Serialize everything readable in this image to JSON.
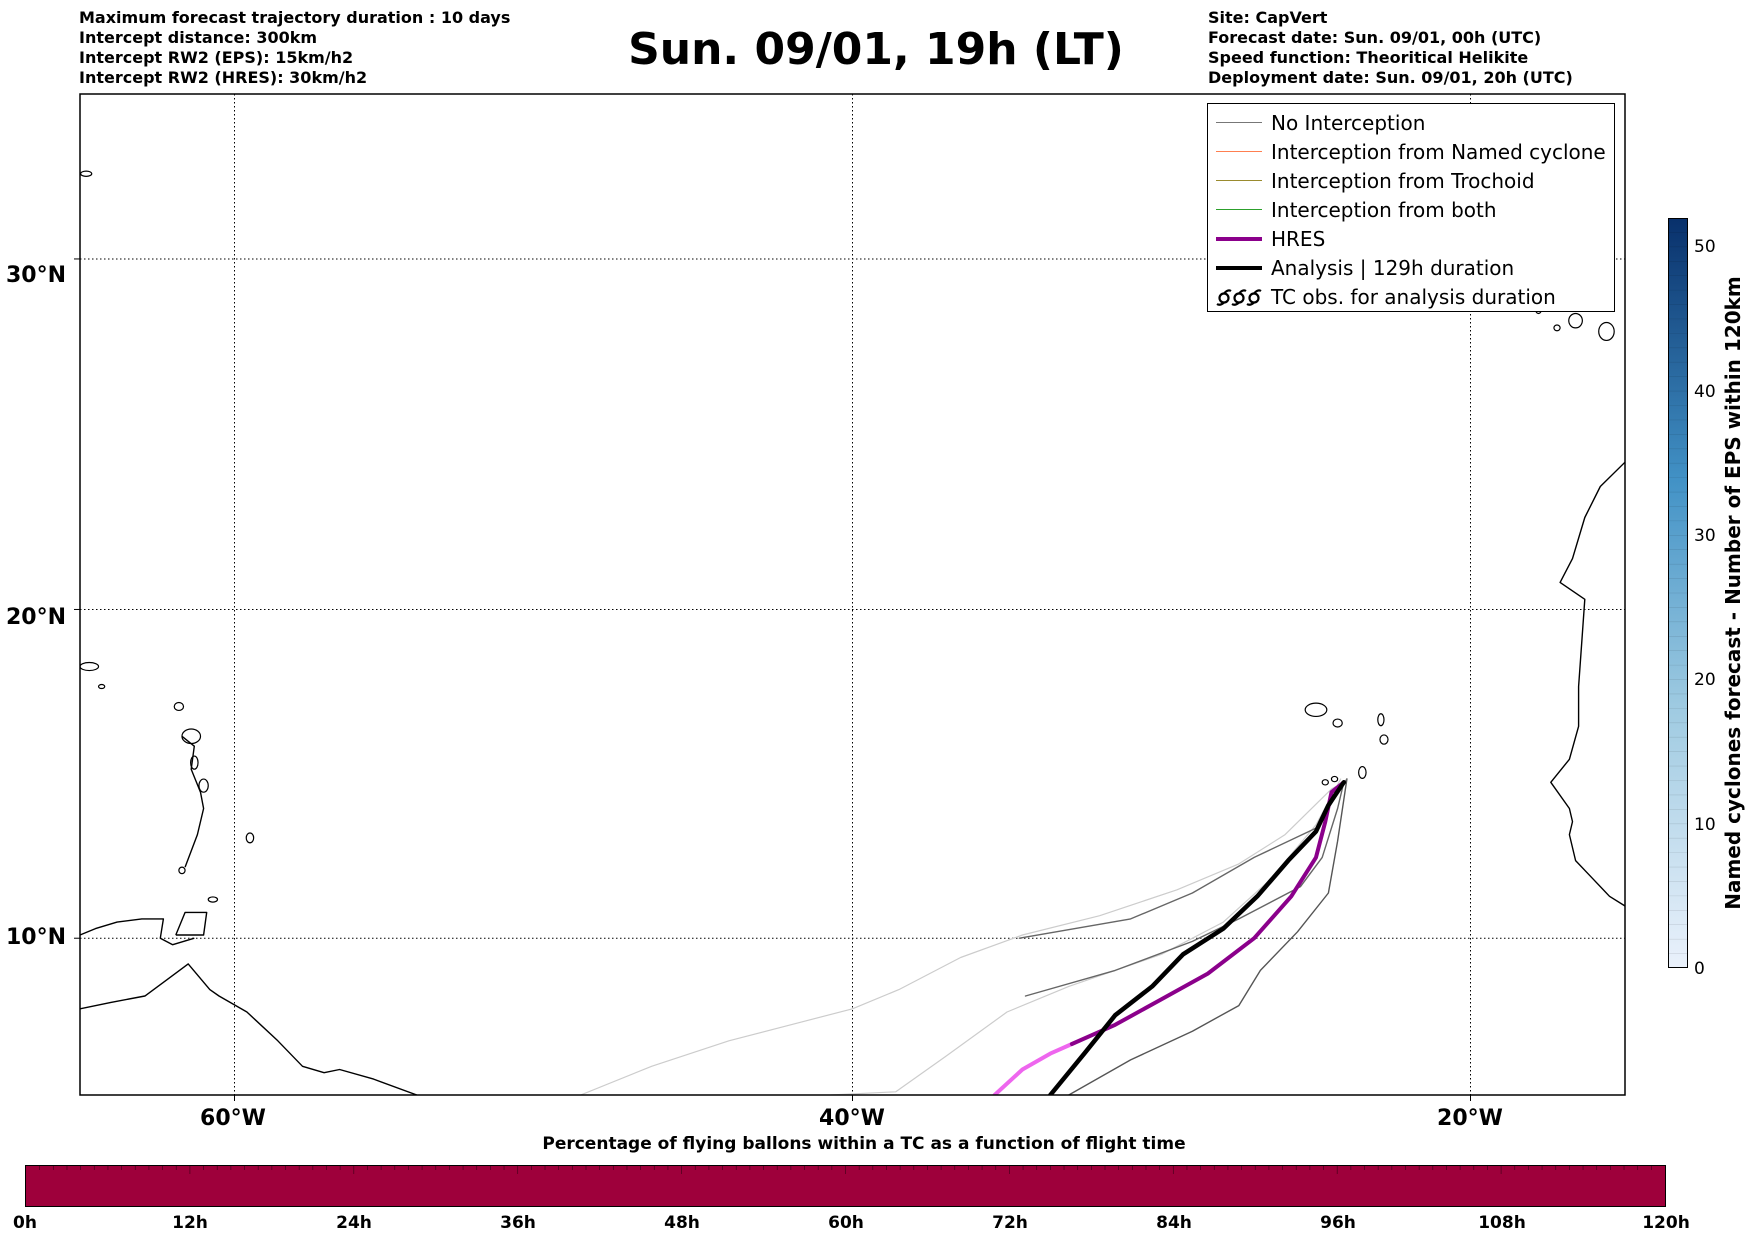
{
  "header_left": [
    "Maximum forecast trajectory duration : 10 days",
    "Intercept distance: 300km",
    "Intercept RW2 (EPS):  15km/h2",
    "Intercept RW2 (HRES): 30km/h2"
  ],
  "title": "Sun. 09/01, 19h (LT)",
  "header_right": [
    "Site: CapVert",
    "Forecast date: Sun. 09/01, 00h (UTC)",
    "Speed function: Theoritical Helikite",
    "Deployment date: Sun. 09/01, 20h (UTC)"
  ],
  "map": {
    "lat_labels": [
      "30°N",
      "20°N",
      "10°N"
    ],
    "lon_labels": [
      "60°W",
      "40°W",
      "20°W"
    ],
    "lon_range": [
      -65,
      -15
    ],
    "lat_range": [
      5.1,
      34.4
    ],
    "gridlines": "dotted"
  },
  "legend": [
    {
      "label": "No Interception",
      "color": "#777777",
      "style": "thin"
    },
    {
      "label": "Interception from Named cyclone",
      "color": "#ff7f50",
      "style": "thin"
    },
    {
      "label": "Interception from Trochoid",
      "color": "#9a8b2e",
      "style": "thin"
    },
    {
      "label": "Interception from both",
      "color": "#2ca02c",
      "style": "thin"
    },
    {
      "label": "HRES",
      "color": "#8b008b",
      "style": "thick"
    },
    {
      "label": "Analysis | 129h duration",
      "color": "#000000",
      "style": "thick"
    },
    {
      "label": "TC obs. for analysis duration",
      "color": "#000000",
      "style": "symbol"
    }
  ],
  "colorbar_vertical": {
    "label": "Named cyclones forecast - Number of EPS within 120km",
    "ticks": [
      "0",
      "10",
      "20",
      "30",
      "40",
      "50"
    ],
    "range": [
      0,
      52
    ],
    "color_low": "#e8f0fa",
    "color_high": "#08306b"
  },
  "colorbar_horizontal": {
    "title": "Percentage of flying ballons within a TC as a function of flight time",
    "ticks": [
      "0h",
      "12h",
      "24h",
      "36h",
      "48h",
      "60h",
      "72h",
      "84h",
      "96h",
      "108h",
      "120h"
    ],
    "fill_color": "#9e003b"
  },
  "trajectories": [
    {
      "kind": "eps_faint",
      "color": "#cccccc",
      "points": [
        [
          -48.8,
          5.1
        ],
        [
          -46.5,
          6.0
        ],
        [
          -44.0,
          6.8
        ],
        [
          -42.0,
          7.3
        ],
        [
          -40.0,
          7.8
        ],
        [
          -38.5,
          8.4
        ],
        [
          -36.5,
          9.4
        ],
        [
          -34.5,
          10.1
        ],
        [
          -32.0,
          10.7
        ],
        [
          -29.5,
          11.5
        ],
        [
          -27.5,
          12.3
        ],
        [
          -26.0,
          13.2
        ],
        [
          -24.5,
          14.6
        ],
        [
          -24.1,
          14.8
        ]
      ]
    },
    {
      "kind": "eps_faint",
      "color": "#cccccc",
      "points": [
        [
          -40.7,
          5.1
        ],
        [
          -38.6,
          5.2
        ],
        [
          -37.0,
          6.3
        ],
        [
          -35.0,
          7.7
        ],
        [
          -33.0,
          8.5
        ],
        [
          -30.0,
          9.5
        ],
        [
          -28.0,
          10.5
        ],
        [
          -26.5,
          11.8
        ],
        [
          -25.0,
          13.5
        ],
        [
          -24.2,
          14.9
        ]
      ]
    },
    {
      "kind": "eps",
      "color": "#666666",
      "points": [
        [
          -34.4,
          8.2
        ],
        [
          -31.5,
          9.0
        ],
        [
          -29.0,
          9.9
        ],
        [
          -27.5,
          10.6
        ],
        [
          -25.5,
          11.6
        ],
        [
          -24.8,
          12.5
        ],
        [
          -24.3,
          14.0
        ],
        [
          -24.1,
          14.8
        ]
      ]
    },
    {
      "kind": "eps",
      "color": "#555555",
      "points": [
        [
          -33.0,
          5.1
        ],
        [
          -31.0,
          6.2
        ],
        [
          -29.0,
          7.1
        ],
        [
          -27.5,
          7.9
        ],
        [
          -26.8,
          9.0
        ],
        [
          -25.6,
          10.2
        ],
        [
          -24.6,
          11.4
        ],
        [
          -24.3,
          13.0
        ],
        [
          -24.0,
          14.9
        ]
      ]
    },
    {
      "kind": "eps",
      "color": "#666666",
      "points": [
        [
          -34.6,
          10.0
        ],
        [
          -31.0,
          10.6
        ],
        [
          -29.0,
          11.4
        ],
        [
          -27.0,
          12.5
        ],
        [
          -25.0,
          13.4
        ],
        [
          -24.0,
          14.9
        ]
      ]
    },
    {
      "kind": "hres_early",
      "color": "#ee66ee",
      "points": [
        [
          -35.4,
          5.1
        ],
        [
          -34.5,
          5.9
        ],
        [
          -33.6,
          6.4
        ],
        [
          -32.9,
          6.7
        ]
      ]
    },
    {
      "kind": "hres",
      "color": "#8b008b",
      "points": [
        [
          -32.9,
          6.7
        ],
        [
          -31.5,
          7.3
        ],
        [
          -30.0,
          8.1
        ],
        [
          -28.5,
          8.9
        ],
        [
          -27.0,
          10.0
        ],
        [
          -25.8,
          11.3
        ],
        [
          -25.0,
          12.5
        ],
        [
          -24.7,
          13.6
        ],
        [
          -24.5,
          14.5
        ],
        [
          -24.1,
          14.8
        ]
      ]
    },
    {
      "kind": "analysis",
      "color": "#000000",
      "points": [
        [
          -33.6,
          5.1
        ],
        [
          -32.5,
          6.4
        ],
        [
          -31.5,
          7.6
        ],
        [
          -30.3,
          8.5
        ],
        [
          -29.3,
          9.5
        ],
        [
          -28.0,
          10.3
        ],
        [
          -26.9,
          11.3
        ],
        [
          -25.9,
          12.4
        ],
        [
          -25.0,
          13.3
        ],
        [
          -24.6,
          14.1
        ],
        [
          -24.1,
          14.8
        ]
      ]
    }
  ],
  "coastlines": [
    {
      "name": "south-america",
      "points": [
        [
          -65,
          7.8
        ],
        [
          -64,
          8.0
        ],
        [
          -62.9,
          8.2
        ],
        [
          -62.2,
          8.7
        ],
        [
          -61.5,
          9.2
        ],
        [
          -60.8,
          8.4
        ],
        [
          -60.5,
          8.2
        ],
        [
          -59.6,
          7.7
        ],
        [
          -58.6,
          6.8
        ],
        [
          -57.8,
          6.0
        ],
        [
          -57.1,
          5.8
        ],
        [
          -56.6,
          5.9
        ],
        [
          -55.5,
          5.6
        ],
        [
          -54.1,
          5.1
        ]
      ]
    },
    {
      "name": "venezuela-north",
      "points": [
        [
          -65,
          10.1
        ],
        [
          -64.5,
          10.3
        ],
        [
          -63.8,
          10.5
        ],
        [
          -63.0,
          10.6
        ],
        [
          -62.3,
          10.6
        ],
        [
          -62.4,
          10.0
        ],
        [
          -62.0,
          9.8
        ],
        [
          -61.3,
          10.0
        ]
      ]
    },
    {
      "name": "trinidad",
      "points": [
        [
          -61.9,
          10.1
        ],
        [
          -61.0,
          10.1
        ],
        [
          -60.9,
          10.8
        ],
        [
          -61.6,
          10.8
        ],
        [
          -61.9,
          10.1
        ]
      ]
    },
    {
      "name": "west-africa",
      "points": [
        [
          -15,
          24.3
        ],
        [
          -15.8,
          23.6
        ],
        [
          -16.3,
          22.7
        ],
        [
          -16.7,
          21.5
        ],
        [
          -17.1,
          20.8
        ],
        [
          -16.3,
          20.3
        ],
        [
          -16.4,
          19.0
        ],
        [
          -16.5,
          17.7
        ],
        [
          -16.5,
          16.5
        ],
        [
          -16.8,
          15.5
        ],
        [
          -17.4,
          14.8
        ],
        [
          -16.8,
          14.0
        ],
        [
          -16.7,
          13.6
        ],
        [
          -16.8,
          13.2
        ],
        [
          -16.6,
          12.4
        ],
        [
          -16.1,
          11.9
        ],
        [
          -15.5,
          11.3
        ],
        [
          -15.0,
          11.0
        ]
      ]
    },
    {
      "name": "antilles-arc",
      "points": [
        [
          -61.7,
          16.2
        ],
        [
          -61.3,
          15.9
        ],
        [
          -61.4,
          15.2
        ],
        [
          -61.1,
          14.5
        ],
        [
          -61.0,
          14.0
        ],
        [
          -61.2,
          13.2
        ],
        [
          -61.6,
          12.2
        ]
      ]
    }
  ],
  "islands": [
    {
      "name": "cape-verde-1",
      "lon": -25.0,
      "lat": 17.0,
      "rx": 0.35,
      "ry": 0.2
    },
    {
      "name": "cape-verde-2",
      "lon": -24.3,
      "lat": 16.6,
      "rx": 0.15,
      "ry": 0.12
    },
    {
      "name": "cape-verde-3",
      "lon": -22.9,
      "lat": 16.7,
      "rx": 0.1,
      "ry": 0.18
    },
    {
      "name": "cape-verde-4",
      "lon": -22.8,
      "lat": 16.1,
      "rx": 0.13,
      "ry": 0.14
    },
    {
      "name": "cape-verde-5",
      "lon": -23.5,
      "lat": 15.1,
      "rx": 0.12,
      "ry": 0.18
    },
    {
      "name": "cape-verde-6",
      "lon": -24.4,
      "lat": 14.9,
      "rx": 0.1,
      "ry": 0.08
    },
    {
      "name": "cape-verde-7",
      "lon": -24.7,
      "lat": 14.8,
      "rx": 0.1,
      "ry": 0.08
    },
    {
      "name": "canary-1",
      "lon": -16.6,
      "lat": 28.3,
      "rx": 0.22,
      "ry": 0.2
    },
    {
      "name": "canary-2",
      "lon": -15.6,
      "lat": 28.0,
      "rx": 0.25,
      "ry": 0.25
    },
    {
      "name": "canary-3",
      "lon": -14.2,
      "lat": 28.4,
      "rx": 0.4,
      "ry": 0.2
    },
    {
      "name": "canary-4",
      "lon": -17.8,
      "lat": 28.7,
      "rx": 0.12,
      "ry": 0.2
    },
    {
      "name": "canary-5",
      "lon": -17.2,
      "lat": 28.1,
      "rx": 0.1,
      "ry": 0.08
    },
    {
      "name": "puerto-rico-edge",
      "lon": -64.7,
      "lat": 18.3,
      "rx": 0.3,
      "ry": 0.12
    },
    {
      "name": "virgin-islands",
      "lon": -64.3,
      "lat": 17.7,
      "rx": 0.1,
      "ry": 0.06
    },
    {
      "name": "antigua",
      "lon": -61.8,
      "lat": 17.1,
      "rx": 0.15,
      "ry": 0.12
    },
    {
      "name": "guadeloupe",
      "lon": -61.4,
      "lat": 16.2,
      "rx": 0.3,
      "ry": 0.22
    },
    {
      "name": "dominica",
      "lon": -61.3,
      "lat": 15.4,
      "rx": 0.12,
      "ry": 0.2
    },
    {
      "name": "martinique",
      "lon": -61.0,
      "lat": 14.7,
      "rx": 0.15,
      "ry": 0.2
    },
    {
      "name": "barbados",
      "lon": -59.5,
      "lat": 13.1,
      "rx": 0.12,
      "ry": 0.15
    },
    {
      "name": "tobago",
      "lon": -60.7,
      "lat": 11.2,
      "rx": 0.15,
      "ry": 0.08
    },
    {
      "name": "grenada",
      "lon": -61.7,
      "lat": 12.1,
      "rx": 0.1,
      "ry": 0.1
    },
    {
      "name": "bermuda",
      "lon": -64.8,
      "lat": 32.3,
      "rx": 0.18,
      "ry": 0.07
    }
  ]
}
